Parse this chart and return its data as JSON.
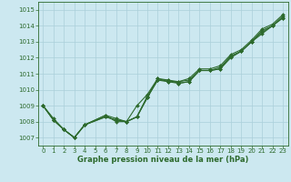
{
  "x": [
    0,
    1,
    2,
    3,
    4,
    5,
    6,
    7,
    8,
    9,
    10,
    11,
    12,
    13,
    14,
    15,
    16,
    17,
    18,
    19,
    20,
    21,
    22,
    23
  ],
  "line1": [
    1009.0,
    1008.1,
    1007.5,
    1007.0,
    1007.8,
    1008.3,
    1008.1,
    1008.0,
    1008.3,
    1009.5,
    1010.7,
    1010.5,
    1010.4,
    1010.5,
    1011.2,
    1011.2,
    1011.3,
    1012.0,
    1012.4,
    1013.0,
    1013.5,
    1014.0,
    1014.5
  ],
  "line1_x": [
    0,
    1,
    2,
    3,
    4,
    6,
    7,
    8,
    9,
    10,
    11,
    12,
    13,
    14,
    15,
    16,
    17,
    18,
    19,
    20,
    21,
    22,
    23
  ],
  "line2": [
    1009.0,
    1008.1,
    1007.5,
    1007.0,
    1007.8,
    1008.3,
    1008.1,
    1008.0,
    1008.3,
    1009.6,
    1010.6,
    1010.5,
    1010.5,
    1010.6,
    1011.2,
    1011.2,
    1011.4,
    1012.1,
    1012.4,
    1013.0,
    1013.7,
    1014.0,
    1014.6
  ],
  "line2_x": [
    0,
    1,
    2,
    3,
    4,
    6,
    7,
    8,
    9,
    10,
    11,
    12,
    13,
    14,
    15,
    16,
    17,
    18,
    19,
    20,
    21,
    22,
    23
  ],
  "line3": [
    1009.0,
    1008.2,
    1007.5,
    1007.0,
    1007.8,
    1008.4,
    1008.2,
    1008.0,
    1009.0,
    1009.7,
    1010.7,
    1010.6,
    1010.5,
    1010.7,
    1011.3,
    1011.3,
    1011.5,
    1012.2,
    1012.5,
    1013.1,
    1013.8,
    1014.1,
    1014.7
  ],
  "line3_x": [
    0,
    1,
    2,
    3,
    4,
    6,
    7,
    8,
    9,
    10,
    11,
    12,
    13,
    14,
    15,
    16,
    17,
    18,
    19,
    20,
    21,
    22,
    23
  ],
  "line4": [
    1009.0,
    1008.1,
    1007.5,
    1007.0,
    1007.8,
    1008.4,
    1008.0,
    1008.0,
    1008.3,
    1009.5,
    1010.6,
    1010.6,
    1010.4,
    1010.5,
    1011.2,
    1011.2,
    1011.3,
    1012.1,
    1012.4,
    1013.0,
    1013.6,
    1014.0,
    1014.5
  ],
  "line4_x": [
    0,
    1,
    2,
    3,
    4,
    6,
    7,
    8,
    9,
    10,
    11,
    12,
    13,
    14,
    15,
    16,
    17,
    18,
    19,
    20,
    21,
    22,
    23
  ],
  "ylim": [
    1006.5,
    1015.5
  ],
  "yticks": [
    1007,
    1008,
    1009,
    1010,
    1011,
    1012,
    1013,
    1014,
    1015
  ],
  "xticks": [
    0,
    1,
    2,
    3,
    4,
    5,
    6,
    7,
    8,
    9,
    10,
    11,
    12,
    13,
    14,
    15,
    16,
    17,
    18,
    19,
    20,
    21,
    22,
    23
  ],
  "xlabel": "Graphe pression niveau de la mer (hPa)",
  "line_color": "#2d6a2d",
  "bg_color": "#cce8f0",
  "grid_color": "#aacfda",
  "marker": "D",
  "marker_size": 2.0,
  "line_width": 0.8,
  "tick_fontsize": 5.0,
  "xlabel_fontsize": 6.0
}
